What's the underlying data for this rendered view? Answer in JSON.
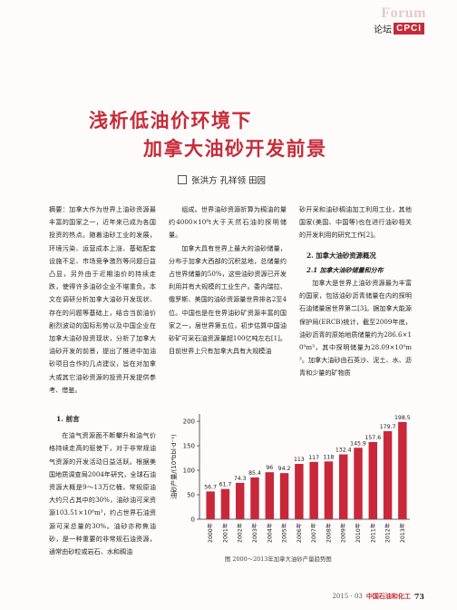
{
  "header": {
    "forum_en": "Forum",
    "forum_cn": "论坛",
    "badge": "CPCI"
  },
  "title": {
    "line1": "浅析低油价环境下",
    "line2": "加拿大油砂开发前景"
  },
  "authors": "张洪方 孔祥领 田园",
  "col1": {
    "abstract": "摘要：加拿大作为世界上油砂资源最丰富的国家之一，近年来已成为各国投资的热点。随着油砂工业的发展，环境污染、运营成本上涨、基础配套设施不足、市场竞争激烈等问题日益凸显，另外由于近期油价的持续走跌，使得许多油砂企业不堪重负。本文在调研分析加拿大油砂开发现状、存在的问题等基础上，结合当前油价剧烈波动的国际形势以及中国企业在加拿大油砂投资现状，分析了加拿大油砂开发的前景，提出了推进中加油砂项目合作的几点建议，旨在对加拿大或其它油砂资源的投资开发提供参考、借鉴。",
    "heading": "1. 前言",
    "intro": "在油气资源面不断攀升和油气价格持续走高的驱使下，对于非常规油气资源的开发活动日益活跃。根据美国地质调查局2004年研究，全球石油资源大概是9～13万亿桶，常规原油大约只占其中的30%，油砂油可采资源103.51×10⁸m³，约占世界石油资源可采总量的30%。油砂亦称焦油砂，是一种重要的非常规石油资源，通常由砂粒或岩石、水和稠油"
  },
  "col2": {
    "p1": "组成。世界油砂资源折算为稠油的量约4000×10⁸t大于天然石油的探明储量。",
    "p2": "加拿大具有世界上最大的油砂储量，分布于加拿大西部的沉积盆地，总储量约占世界储量的50%，这些油砂资源已开发利用并有大规模的工业生产。委内瑞拉、俄罗斯、美国的油砂资源量世界排名2至4位。中国也是在世界油砂矿资源丰富的国家之一，居世界第五位，初步估算中国油砂矿可采石油资源量超100亿吨左右[1]。目前世界上只有加拿大具有大规模油"
  },
  "col3": {
    "p0": "砂开采和油砂稠油加工利用工业，其他国家(美国、中国等)也在进行油砂相关的开发利用的研究工作[2]。",
    "h2": "2. 加拿大油砂资源概况",
    "h3": "2.1 加拿大油砂储量和分布",
    "p1": "加拿大是世界上油砂资源最为丰富的国家，包括油砂沥青储量在内的探明石油储量居世界第二[3]。据加拿大能源保护局(ERCB)统计，截至2009年底，油砂沥青的原始地质储量约为286.6×10⁹m³，其中探明储量为28.09×10⁹m³。加拿大油砂由石英沙、泥土、水、沥青和少量的矿物质"
  },
  "chart_data": {
    "type": "bar",
    "title": "",
    "caption": "图 2000～2013年加拿大油砂产量趋势图",
    "ylabel": "油砂产量/(10⁴bbl·d⁻¹)",
    "xlabel": "",
    "categories": [
      "2000年",
      "2001年",
      "2002年",
      "2003年",
      "2004年",
      "2005年",
      "2006年",
      "2007年",
      "2008年",
      "2009年",
      "2010年",
      "2011年",
      "2012年",
      "2013年"
    ],
    "values": [
      56.7,
      61.7,
      74.3,
      85.4,
      96,
      94.2,
      113,
      117,
      118,
      132.4,
      145.9,
      157.6,
      179.7,
      198.5
    ],
    "data_labels": [
      "56.7",
      "61.7",
      "74.3",
      "85.4",
      "96",
      "94.2",
      "113",
      "117",
      "118",
      "132.4",
      "145.9",
      "157.6",
      "179.7",
      "198.5"
    ],
    "yticks": [
      "0",
      "50",
      "100",
      "150",
      "200"
    ],
    "ylim": [
      0,
      215
    ],
    "bar_color": "#c8283a",
    "grid": false
  },
  "footer": {
    "issue": "2015 · 03",
    "journal": "中国石油和化工",
    "page": "73"
  }
}
